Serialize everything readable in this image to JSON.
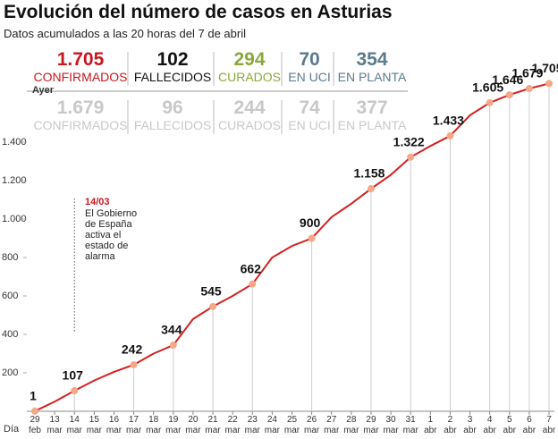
{
  "header": {
    "title": "Evolución del número de casos en Asturias",
    "subtitle": "Datos acumulados a las 20 horas del 7 de abril"
  },
  "stats": {
    "today": [
      {
        "value": "1.705",
        "label": "CONFIRMADOS",
        "color": "#c8161d"
      },
      {
        "value": "102",
        "label": "FALLECIDOS",
        "color": "#111111"
      },
      {
        "value": "294",
        "label": "CURADOS",
        "color": "#8aa83a"
      },
      {
        "value": "70",
        "label": "EN UCI",
        "color": "#5b7a8c"
      },
      {
        "value": "354",
        "label": "EN PLANTA",
        "color": "#5b7a8c"
      }
    ],
    "yesterday_label": "Ayer",
    "yesterday": [
      {
        "value": "1.679",
        "label": "CONFIRMADOS"
      },
      {
        "value": "96",
        "label": "FALLECIDOS"
      },
      {
        "value": "244",
        "label": "CURADOS"
      },
      {
        "value": "74",
        "label": "EN UCI"
      },
      {
        "value": "377",
        "label": "EN PLANTA"
      }
    ]
  },
  "chart_data": {
    "type": "line",
    "x_label": "Día",
    "categories": [
      "29 feb",
      "13 mar",
      "14 mar",
      "15 mar",
      "16 mar",
      "17 mar",
      "18 mar",
      "19 mar",
      "20 mar",
      "21 mar",
      "22 mar",
      "23 mar",
      "24 mar",
      "25 mar",
      "26 mar",
      "27 mar",
      "28 mar",
      "29 mar",
      "30 mar",
      "31 mar",
      "1 abr",
      "2 abr",
      "3 abr",
      "4 abr",
      "5 abr",
      "6 abr",
      "7 abr"
    ],
    "values": [
      1,
      50,
      107,
      160,
      205,
      242,
      300,
      344,
      480,
      545,
      600,
      662,
      800,
      860,
      900,
      1010,
      1080,
      1158,
      1230,
      1322,
      1380,
      1433,
      1540,
      1605,
      1646,
      1679,
      1705
    ],
    "value_labels": [
      "1",
      null,
      "107",
      null,
      null,
      "242",
      null,
      "344",
      null,
      "545",
      null,
      "662",
      null,
      null,
      "900",
      null,
      null,
      "1.158",
      null,
      "1.322",
      null,
      "1.433",
      null,
      "1.605",
      "1.646",
      "1.679",
      "1.705"
    ],
    "color": "#d42020",
    "ylim": [
      0,
      1750
    ],
    "yticks": [
      200,
      400,
      600,
      800,
      {
        "value": 1000,
        "label": "1.000"
      },
      {
        "value": 1200,
        "label": "1.200"
      },
      {
        "value": 1400,
        "label": "1.400"
      }
    ],
    "annotation": {
      "date": "14/03",
      "text": "El Gobierno de España activa el estado de alarma",
      "x_index": 2
    }
  }
}
